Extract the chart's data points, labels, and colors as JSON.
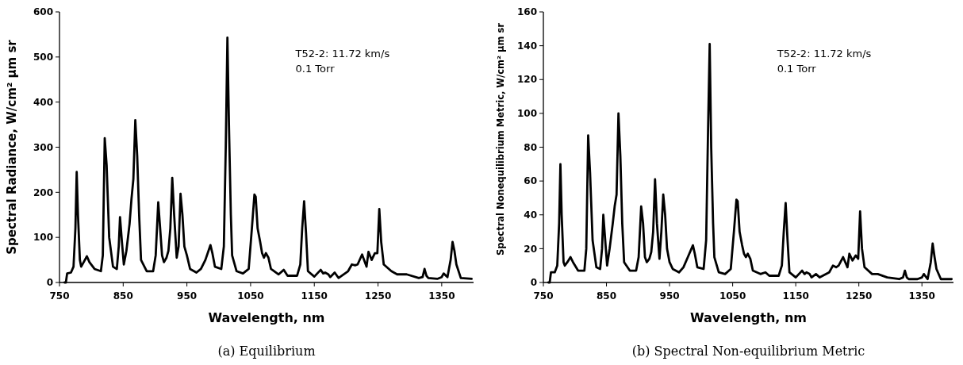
{
  "chart_data": [
    {
      "type": "line",
      "title": "(a) Equilibrium",
      "xlabel": "Wavelength, nm",
      "ylabel": "Spectral Radiance, W/cm² μm sr",
      "annotations": [
        "T52-2: 11.72 km/s",
        "0.1 Torr"
      ],
      "xlim": [
        750,
        1400
      ],
      "xticks": [
        750,
        850,
        950,
        1050,
        1150,
        1250,
        1350
      ],
      "ylim": [
        0,
        600
      ],
      "yticks": [
        0,
        100,
        200,
        300,
        400,
        500,
        600
      ],
      "grid": false,
      "marker": "none",
      "line_style": "solid",
      "series": [
        {
          "color": "#000000",
          "x": [
            758,
            760,
            762,
            768,
            772,
            775,
            777,
            779,
            782,
            784,
            788,
            793,
            797,
            805,
            815,
            818,
            821,
            824,
            828,
            834,
            840,
            843,
            845,
            848,
            851,
            855,
            860,
            863,
            866,
            869,
            872,
            875,
            878,
            887,
            897,
            901,
            905,
            908,
            911,
            914,
            918,
            921,
            924,
            927,
            930,
            934,
            937,
            940,
            943,
            946,
            950,
            955,
            965,
            972,
            979,
            987,
            990,
            994,
            1004,
            1008,
            1011,
            1013.6,
            1016,
            1019,
            1021,
            1028,
            1038,
            1047,
            1052,
            1056,
            1058,
            1061,
            1065,
            1068,
            1071,
            1074,
            1078,
            1082,
            1094,
            1102,
            1108,
            1123,
            1128,
            1131,
            1134,
            1137,
            1140,
            1150,
            1160,
            1164,
            1167,
            1172,
            1175,
            1182,
            1188,
            1203,
            1209,
            1214,
            1218,
            1225,
            1232,
            1235,
            1240,
            1245,
            1249,
            1252,
            1255,
            1259,
            1271,
            1280,
            1295,
            1314,
            1320,
            1323,
            1326,
            1329,
            1343,
            1350,
            1353,
            1359,
            1364,
            1367,
            1370,
            1373,
            1380,
            1397
          ],
          "values": [
            0,
            0,
            20,
            22,
            35,
            120,
            245,
            150,
            50,
            35,
            45,
            58,
            45,
            30,
            25,
            60,
            320,
            260,
            100,
            35,
            30,
            80,
            145,
            90,
            40,
            70,
            130,
            185,
            230,
            360,
            280,
            150,
            50,
            25,
            25,
            60,
            178,
            120,
            60,
            45,
            55,
            70,
            120,
            232,
            150,
            55,
            80,
            197,
            150,
            80,
            60,
            30,
            22,
            30,
            50,
            83,
            65,
            35,
            30,
            80,
            300,
            543,
            350,
            150,
            60,
            25,
            20,
            30,
            120,
            195,
            190,
            120,
            90,
            65,
            55,
            65,
            55,
            30,
            18,
            28,
            15,
            15,
            40,
            120,
            180,
            110,
            25,
            13,
            28,
            20,
            22,
            18,
            12,
            22,
            10,
            25,
            40,
            38,
            40,
            62,
            35,
            68,
            50,
            65,
            65,
            163,
            90,
            40,
            25,
            18,
            18,
            10,
            12,
            30,
            15,
            10,
            8,
            12,
            20,
            12,
            50,
            90,
            70,
            40,
            10,
            8
          ]
        }
      ]
    },
    {
      "type": "line",
      "title": "(b) Spectral Non-equilibrium Metric",
      "xlabel": "Wavelength, nm",
      "ylabel": "Spectral Nonequilibrium Metric, W/cm² μm sr",
      "annotations": [
        "T52-2: 11.72 km/s",
        "0.1 Torr"
      ],
      "xlim": [
        750,
        1400
      ],
      "xticks": [
        750,
        850,
        950,
        1050,
        1150,
        1250,
        1350
      ],
      "ylim": [
        0,
        160
      ],
      "yticks": [
        0,
        20,
        40,
        60,
        80,
        100,
        120,
        140,
        160
      ],
      "grid": false,
      "marker": "none",
      "line_style": "solid",
      "series": [
        {
          "color": "#000000",
          "x": [
            758,
            760,
            762,
            768,
            772,
            775,
            777,
            779,
            782,
            784,
            788,
            793,
            797,
            805,
            815,
            818,
            821,
            824,
            828,
            834,
            840,
            843,
            845,
            848,
            851,
            855,
            860,
            863,
            866,
            869,
            872,
            875,
            878,
            887,
            897,
            901,
            905,
            908,
            911,
            914,
            918,
            921,
            924,
            927,
            930,
            934,
            937,
            940,
            943,
            946,
            950,
            955,
            965,
            972,
            979,
            987,
            990,
            994,
            1004,
            1008,
            1011,
            1013.6,
            1016,
            1019,
            1021,
            1028,
            1038,
            1047,
            1052,
            1056,
            1058,
            1061,
            1065,
            1068,
            1071,
            1074,
            1078,
            1082,
            1094,
            1102,
            1108,
            1123,
            1128,
            1131,
            1134,
            1137,
            1140,
            1150,
            1160,
            1164,
            1167,
            1172,
            1175,
            1182,
            1188,
            1203,
            1209,
            1214,
            1218,
            1225,
            1232,
            1235,
            1240,
            1245,
            1249,
            1252,
            1255,
            1259,
            1271,
            1280,
            1295,
            1314,
            1320,
            1323,
            1326,
            1329,
            1343,
            1350,
            1353,
            1359,
            1364,
            1367,
            1370,
            1373,
            1380,
            1397
          ],
          "values": [
            0,
            0,
            6,
            6,
            10,
            35,
            70,
            40,
            12,
            10,
            12,
            15,
            12,
            7,
            7,
            20,
            87,
            65,
            25,
            9,
            8,
            20,
            40,
            25,
            10,
            20,
            35,
            45,
            52,
            100,
            75,
            35,
            12,
            7,
            7,
            15,
            45,
            35,
            15,
            12,
            14,
            18,
            30,
            61,
            35,
            14,
            30,
            52,
            40,
            20,
            12,
            8,
            6,
            9,
            15,
            22,
            17,
            9,
            8,
            25,
            90,
            141,
            80,
            35,
            15,
            6,
            5,
            8,
            30,
            49,
            48,
            30,
            22,
            17,
            15,
            17,
            14,
            7,
            5,
            6,
            4,
            4,
            10,
            30,
            47,
            25,
            6,
            3,
            7,
            5,
            6,
            5,
            3,
            5,
            3,
            6,
            10,
            9,
            10,
            15,
            9,
            17,
            13,
            16,
            14,
            42,
            20,
            9,
            5,
            5,
            3,
            2,
            3,
            7,
            3,
            2,
            2,
            3,
            5,
            2,
            12,
            23,
            15,
            8,
            2,
            2
          ]
        }
      ]
    }
  ]
}
